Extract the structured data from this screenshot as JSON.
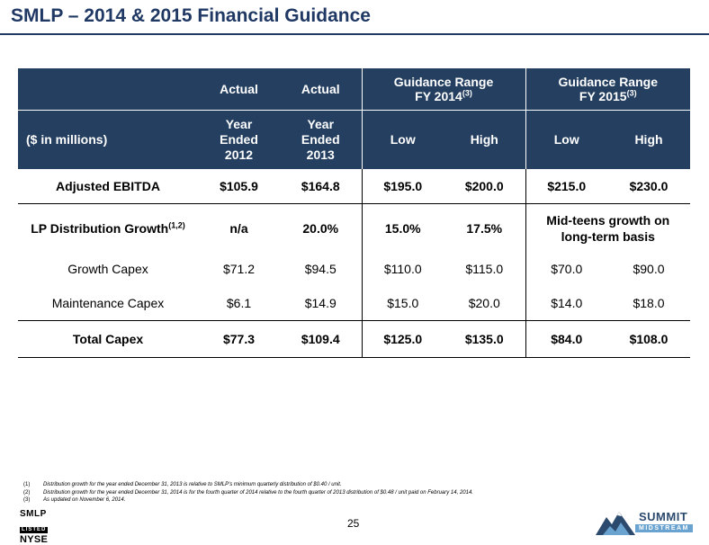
{
  "title": "SMLP – 2014 & 2015 Financial Guidance",
  "table": {
    "header1": {
      "col1": "Actual",
      "col2": "Actual",
      "guide2014": "Guidance Range",
      "guide2014_sub": "FY 2014",
      "guide2014_note": "(3)",
      "guide2015": "Guidance Range",
      "guide2015_sub": "FY 2015",
      "guide2015_note": "(3)"
    },
    "header2": {
      "label": "($ in millions)",
      "y2012_l1": "Year",
      "y2012_l2": "Ended",
      "y2012_l3": "2012",
      "y2013_l1": "Year",
      "y2013_l2": "Ended",
      "y2013_l3": "2013",
      "low14": "Low",
      "high14": "High",
      "low15": "Low",
      "high15": "High"
    },
    "ebitda": {
      "label": "Adjusted EBITDA",
      "v2012": "$105.9",
      "v2013": "$164.8",
      "low14": "$195.0",
      "high14": "$200.0",
      "low15": "$215.0",
      "high15": "$230.0"
    },
    "lp": {
      "label": "LP Distribution Growth",
      "note": "(1,2)",
      "v2012": "n/a",
      "v2013": "20.0%",
      "low14": "15.0%",
      "high14": "17.5%",
      "fy15_l1": "Mid-teens growth on",
      "fy15_l2": "long-term basis"
    },
    "growth_capex": {
      "label": "Growth Capex",
      "v2012": "$71.2",
      "v2013": "$94.5",
      "low14": "$110.0",
      "high14": "$115.0",
      "low15": "$70.0",
      "high15": "$90.0"
    },
    "maint_capex": {
      "label": "Maintenance Capex",
      "v2012": "$6.1",
      "v2013": "$14.9",
      "low14": "$15.0",
      "high14": "$20.0",
      "low15": "$14.0",
      "high15": "$18.0"
    },
    "total_capex": {
      "label": "Total Capex",
      "v2012": "$77.3",
      "v2013": "$109.4",
      "low14": "$125.0",
      "high14": "$135.0",
      "low15": "$84.0",
      "high15": "$108.0"
    }
  },
  "footnotes": [
    {
      "num": "(1)",
      "text": "Distribution growth for the year ended December 31, 2013 is relative to SMLP's minimum quarterly distribution of $0.40 / unit."
    },
    {
      "num": "(2)",
      "text": "Distribution growth for the year ended December 31, 2014 is for the fourth quarter of 2014 relative to the fourth quarter of 2013 distribution of $0.48 / unit paid on February 14, 2014."
    },
    {
      "num": "(3)",
      "text": "As updated on November 6, 2014."
    }
  ],
  "nyse_logo": {
    "l1": "SMLP",
    "l2": "LISTED",
    "l3": "NYSE"
  },
  "page_number": "25",
  "summit_logo": {
    "name": "SUMMIT",
    "sub": "MIDSTREAM"
  },
  "colors": {
    "navy": "#243f60",
    "title": "#1f3864",
    "logo_blue": "#6aa3d0"
  }
}
